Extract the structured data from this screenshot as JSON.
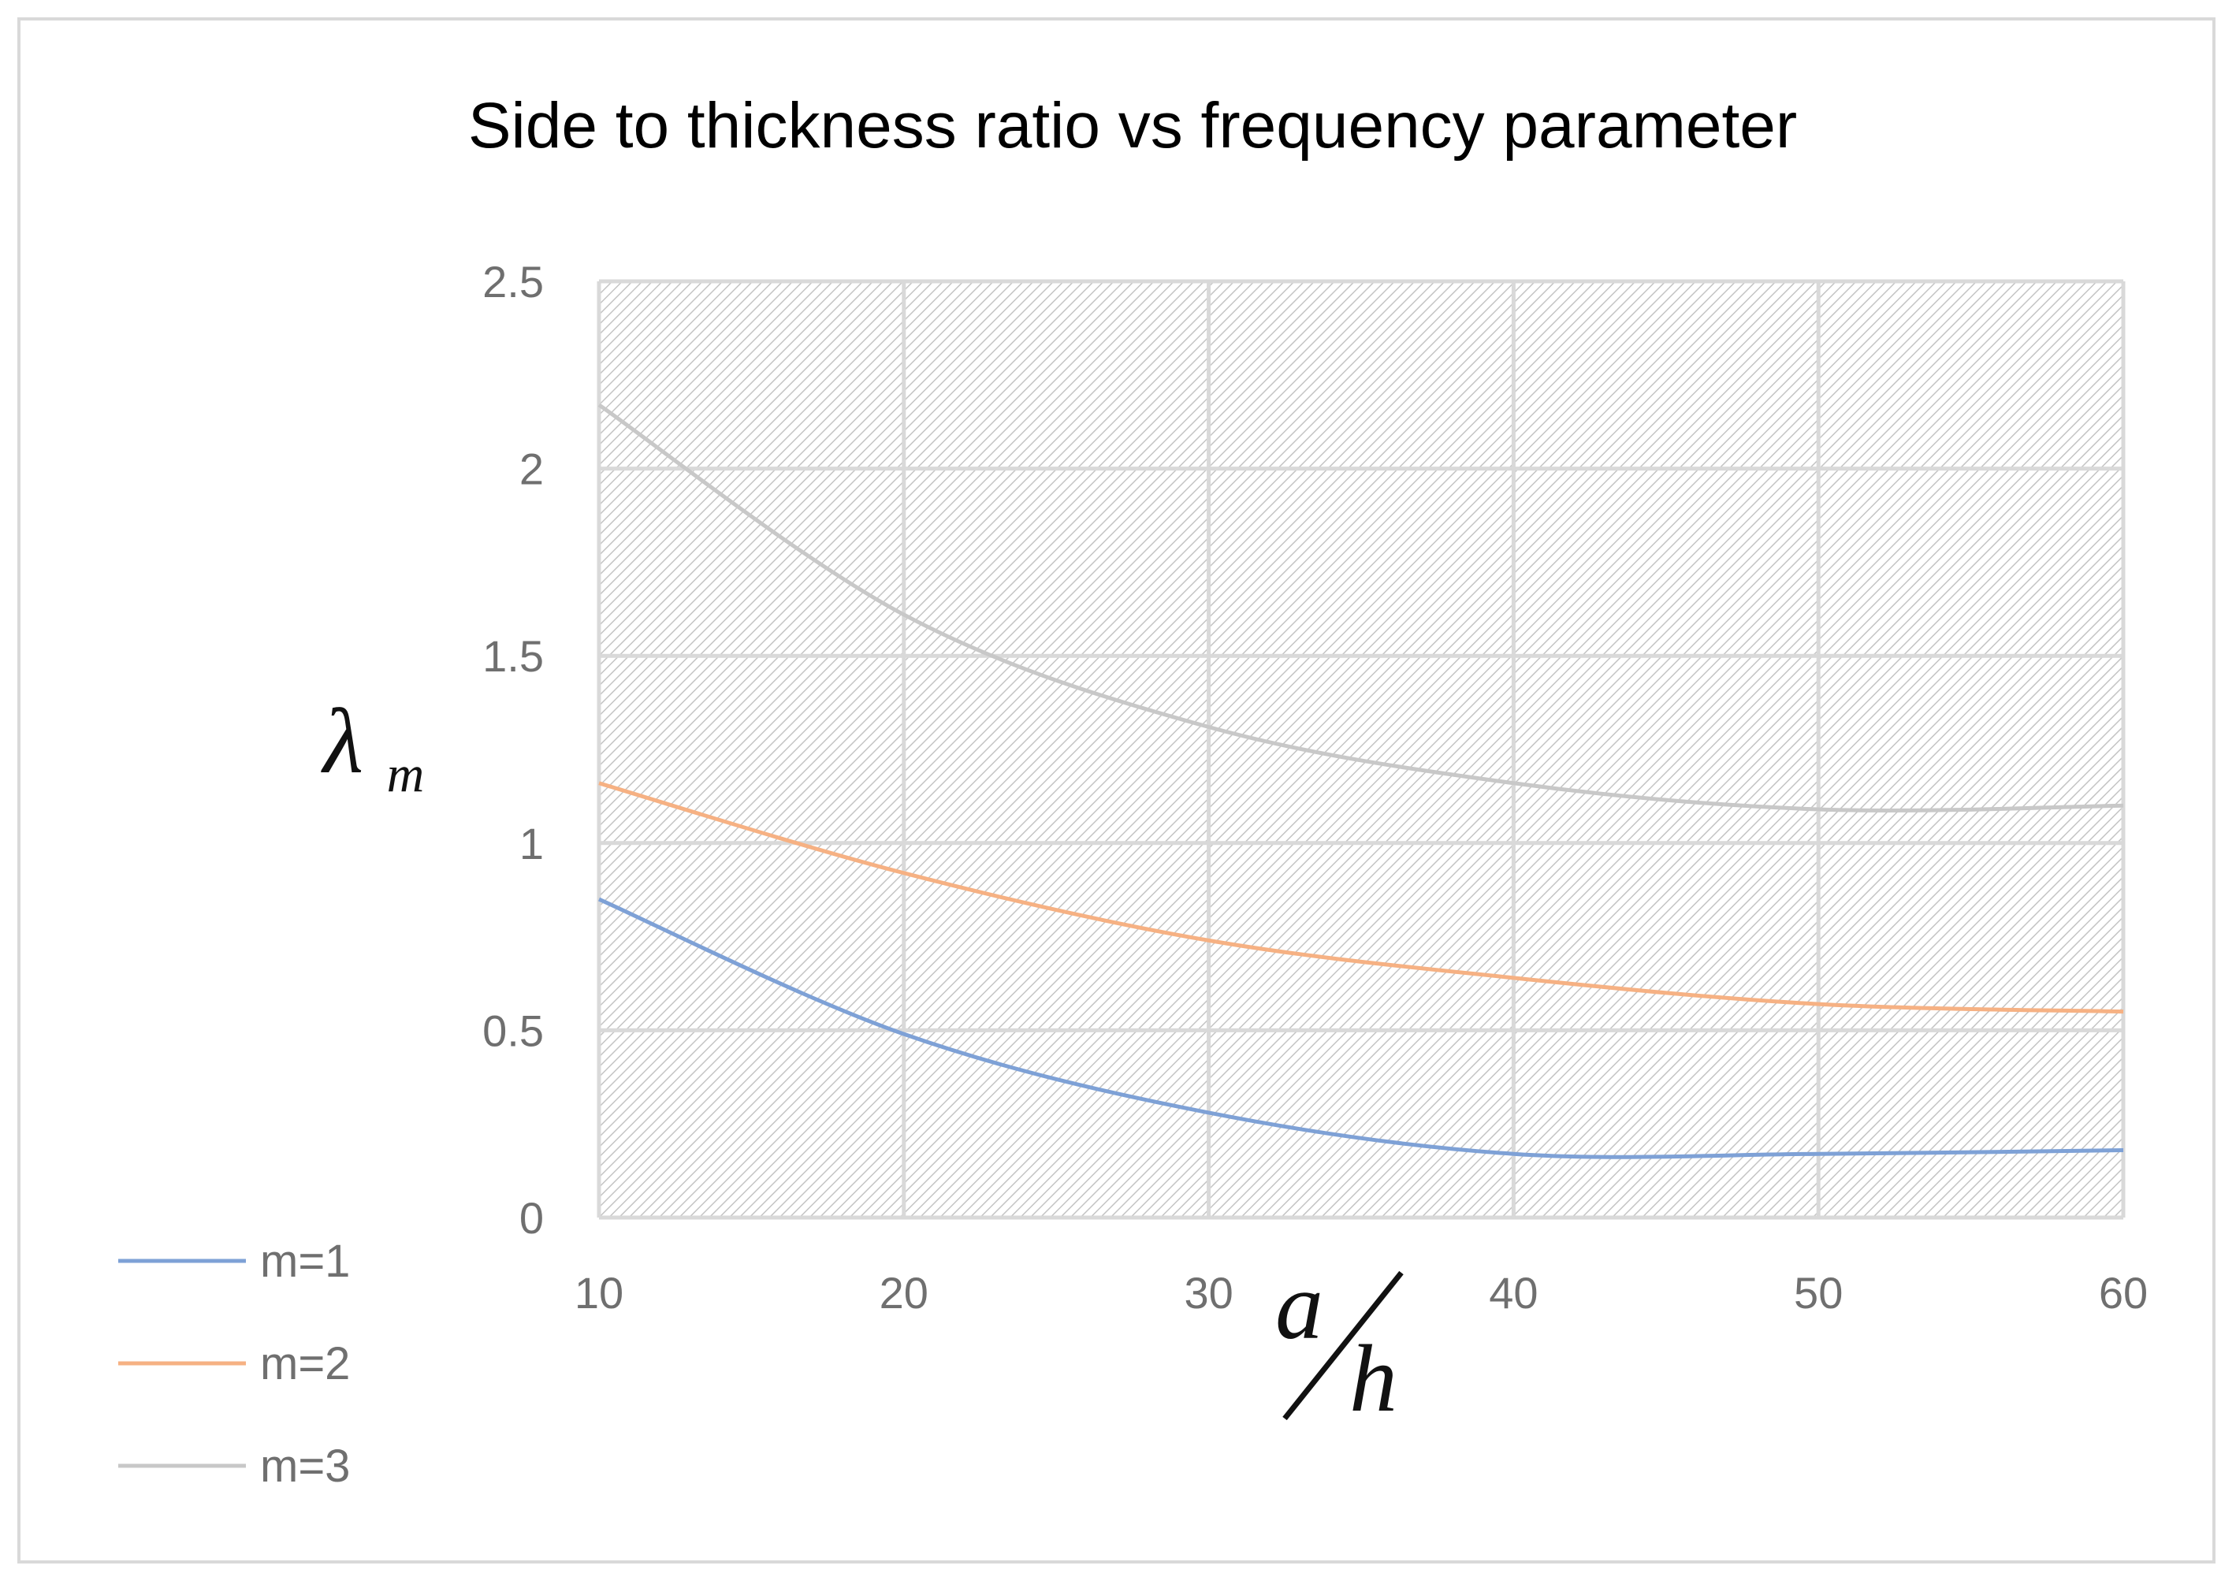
{
  "chart_data": {
    "type": "line",
    "title": "Side to thickness ratio vs frequency parameter",
    "xlabel": {
      "numerator": "a",
      "denominator": "h"
    },
    "ylabel": {
      "symbol": "λ",
      "subscript": "m"
    },
    "x": [
      10,
      20,
      30,
      40,
      50,
      60
    ],
    "xlim": [
      10,
      60
    ],
    "ylim": [
      0,
      2.5
    ],
    "x_ticks": [
      "10",
      "20",
      "30",
      "40",
      "50",
      "60"
    ],
    "y_ticks": [
      "0",
      "0.5",
      "1",
      "1.5",
      "2",
      "2.5"
    ],
    "grid": true,
    "legend_position": "bottom-left",
    "series": [
      {
        "name": "m=1",
        "color": "#7ea1d6",
        "values": [
          0.85,
          0.49,
          0.28,
          0.17,
          0.17,
          0.18
        ]
      },
      {
        "name": "m=2",
        "color": "#f6b183",
        "values": [
          1.16,
          0.92,
          0.74,
          0.64,
          0.57,
          0.55
        ]
      },
      {
        "name": "m=3",
        "color": "#c8c8c8",
        "values": [
          2.17,
          1.61,
          1.31,
          1.16,
          1.09,
          1.1
        ]
      }
    ]
  }
}
